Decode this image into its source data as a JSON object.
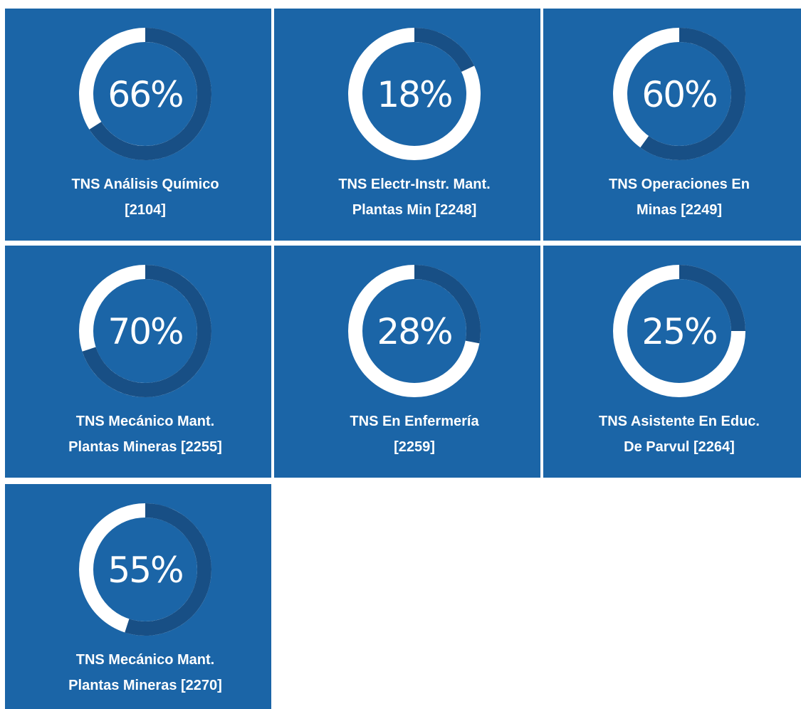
{
  "tiles": [
    {
      "value": 66,
      "value_label": "66%",
      "label": [
        "TNS Análisis Químico",
        "[2104]"
      ]
    },
    {
      "value": 18,
      "value_label": "18%",
      "label": [
        "TNS Electr-Instr. Mant.",
        "Plantas Min [2248]"
      ]
    },
    {
      "value": 60,
      "value_label": "60%",
      "label": [
        "TNS Operaciones En",
        "Minas [2249]"
      ]
    },
    {
      "value": 70,
      "value_label": "70%",
      "label": [
        "TNS Mecánico Mant.",
        "Plantas Mineras [2255]"
      ]
    },
    {
      "value": 28,
      "value_label": "28%",
      "label": [
        "TNS En Enfermería",
        "[2259]"
      ]
    },
    {
      "value": 25,
      "value_label": "25%",
      "label": [
        "TNS Asistente En Educ.",
        "De Parvul [2264]"
      ]
    },
    {
      "value": 55,
      "value_label": "55%",
      "label": [
        "TNS Mecánico Mant.",
        "Plantas Mineras [2270]"
      ]
    }
  ]
}
